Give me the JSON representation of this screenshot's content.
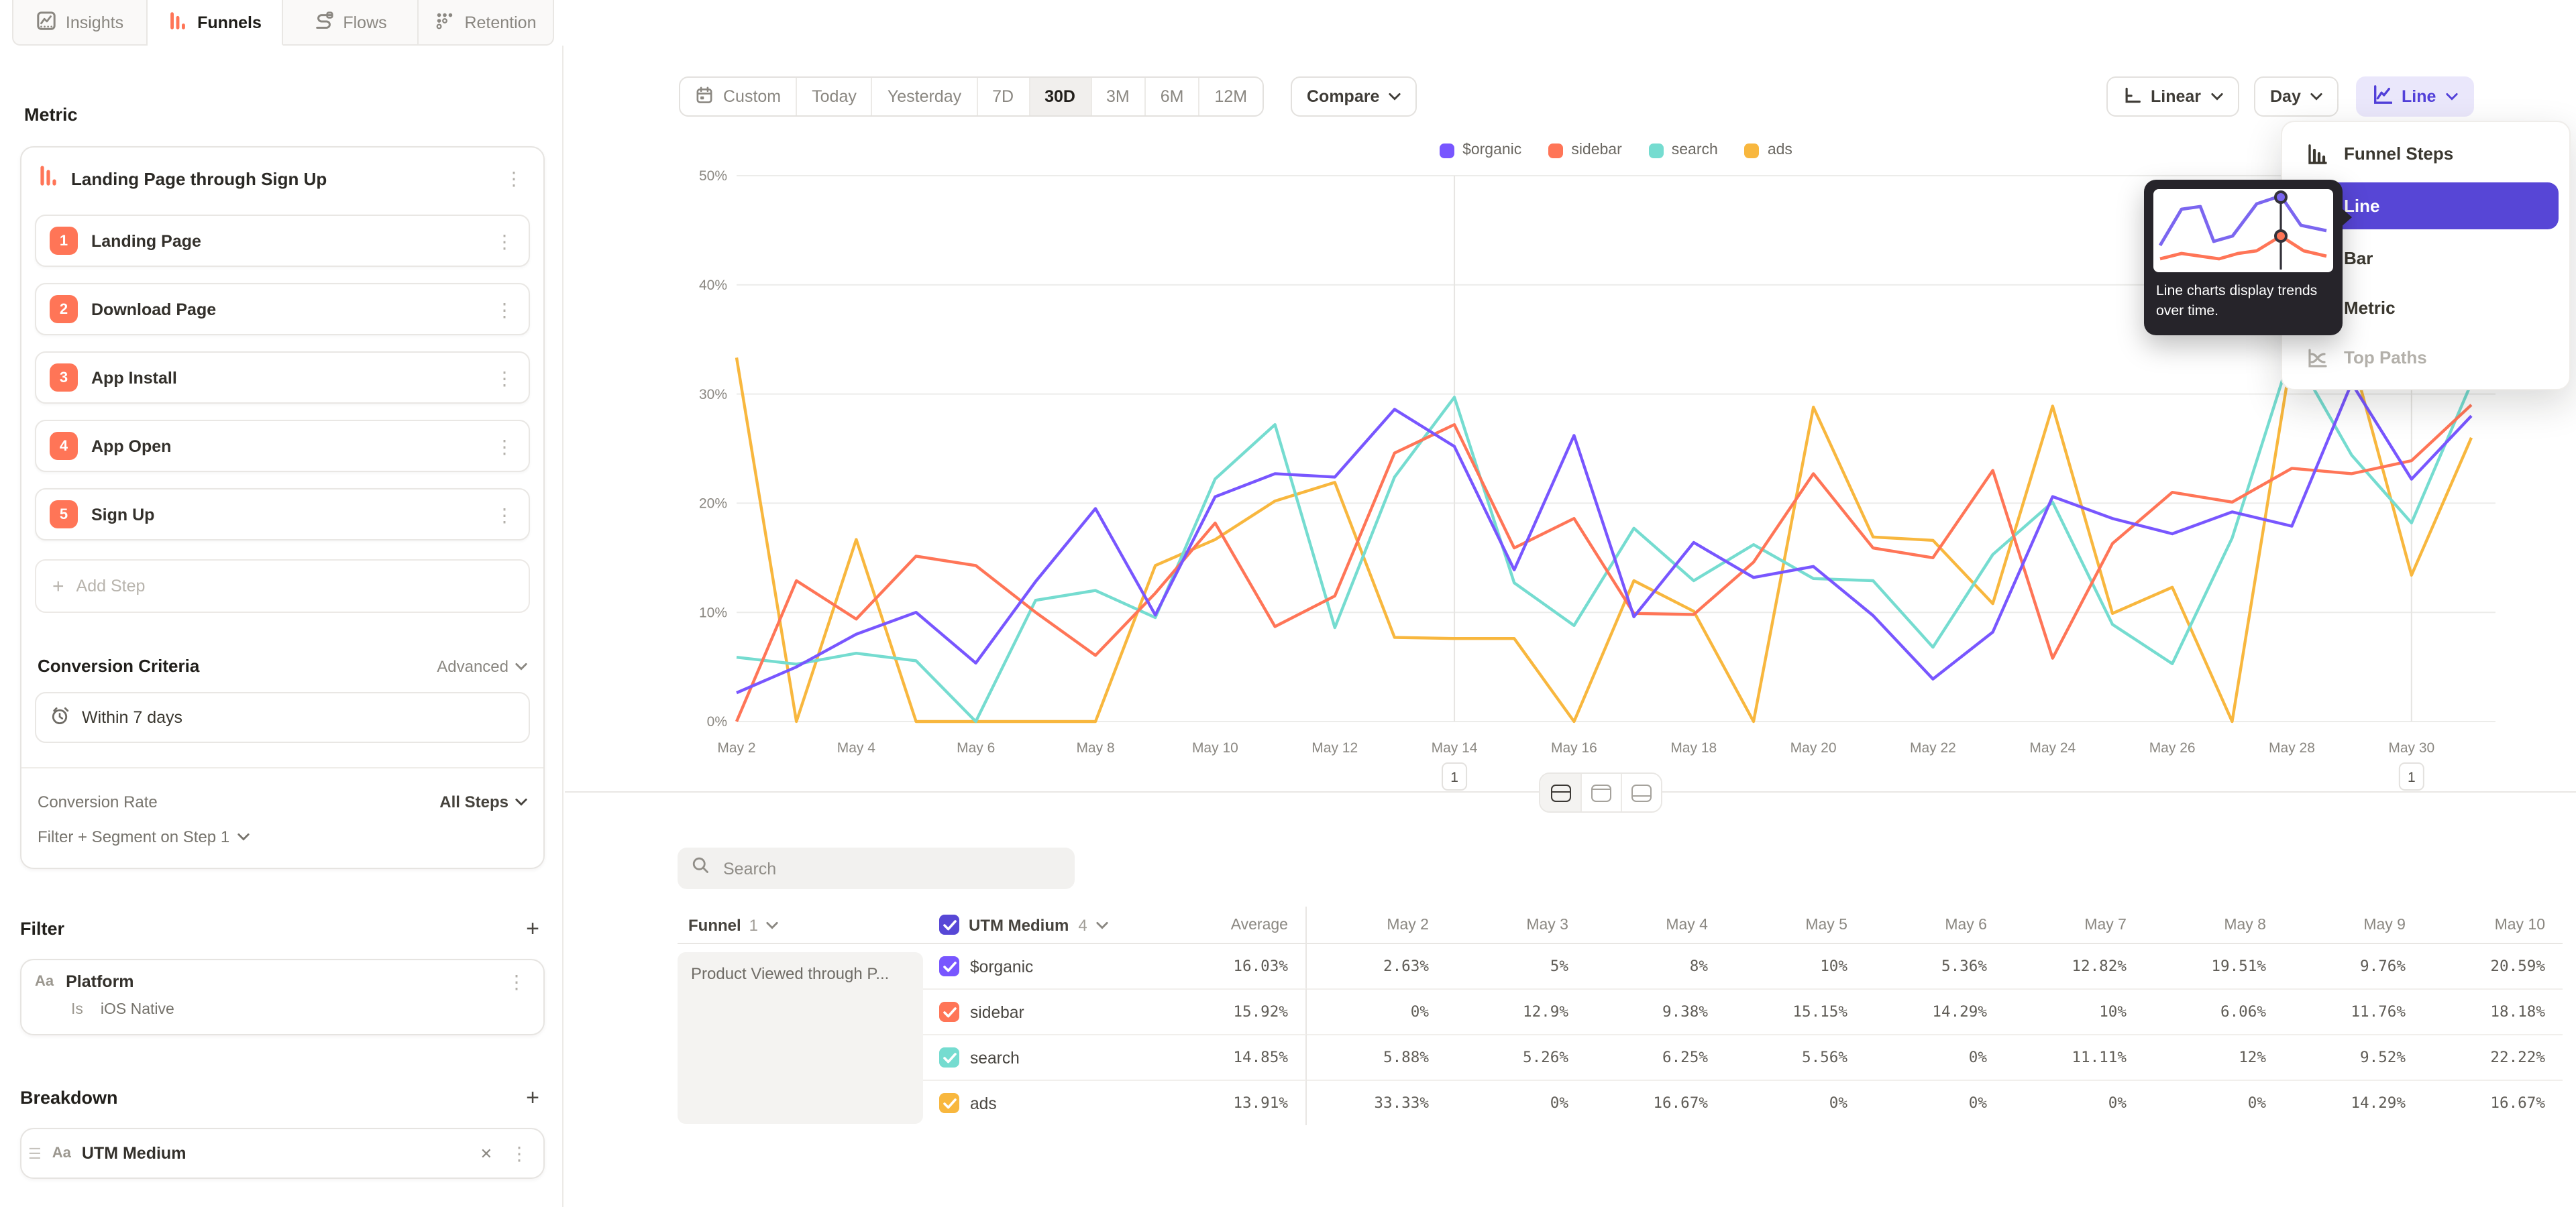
{
  "nav": {
    "tabs": [
      {
        "label": "Insights",
        "icon": "insights-icon",
        "active": false
      },
      {
        "label": "Funnels",
        "icon": "funnels-icon",
        "active": true
      },
      {
        "label": "Flows",
        "icon": "flows-icon",
        "active": false
      },
      {
        "label": "Retention",
        "icon": "retention-icon",
        "active": false
      }
    ]
  },
  "sidebar": {
    "metric_heading": "Metric",
    "metric": {
      "title": "Landing Page through Sign Up",
      "steps": [
        {
          "num": "1",
          "label": "Landing Page"
        },
        {
          "num": "2",
          "label": "Download Page"
        },
        {
          "num": "3",
          "label": "App Install"
        },
        {
          "num": "4",
          "label": "App Open"
        },
        {
          "num": "5",
          "label": "Sign Up"
        }
      ],
      "add_step_label": "Add Step"
    },
    "conversion_criteria": {
      "heading": "Conversion Criteria",
      "advanced_label": "Advanced",
      "window": "Within 7 days",
      "rate_label": "Conversion Rate",
      "rate_value": "All Steps",
      "filter_segment_label": "Filter + Segment on Step 1"
    },
    "filter": {
      "heading": "Filter",
      "type_badge": "Aa",
      "property": "Platform",
      "operator": "Is",
      "value": "iOS Native"
    },
    "breakdown": {
      "heading": "Breakdown",
      "type_badge": "Aa",
      "property": "UTM Medium"
    }
  },
  "toolbar": {
    "date_ranges": [
      "Custom",
      "Today",
      "Yesterday",
      "7D",
      "30D",
      "3M",
      "6M",
      "12M"
    ],
    "active_range": "30D",
    "compare_label": "Compare",
    "x_axis_label": "Linear",
    "granularity_label": "Day",
    "chart_type_label": "Line"
  },
  "chart_menu": {
    "items": [
      {
        "label": "Funnel Steps",
        "icon": "funnel-steps-icon",
        "selected": false,
        "disabled": false
      },
      {
        "label": "Line",
        "icon": "line-icon",
        "selected": true,
        "disabled": false
      },
      {
        "label": "Bar",
        "icon": "bar-icon",
        "selected": false,
        "disabled": false
      },
      {
        "label": "Metric",
        "icon": "metric-icon",
        "selected": false,
        "disabled": false
      },
      {
        "label": "Top Paths",
        "icon": "top-paths-icon",
        "selected": false,
        "disabled": true
      }
    ],
    "tooltip": {
      "text": "Line charts display trends over time."
    }
  },
  "chart_data": {
    "type": "line",
    "x": [
      "May 2",
      "May 3",
      "May 4",
      "May 5",
      "May 6",
      "May 7",
      "May 8",
      "May 9",
      "May 10",
      "May 11",
      "May 12",
      "May 13",
      "May 14",
      "May 15",
      "May 16",
      "May 17",
      "May 18",
      "May 19",
      "May 20",
      "May 21",
      "May 22",
      "May 23",
      "May 24",
      "May 25",
      "May 26",
      "May 27",
      "May 28",
      "May 29",
      "May 30",
      "May 31"
    ],
    "xtick_every": 2,
    "ylim": [
      0,
      50
    ],
    "yticks": [
      0,
      10,
      20,
      30,
      40,
      50
    ],
    "grid": true,
    "legend_position": "top",
    "series": [
      {
        "name": "$organic",
        "color": "#7856ff",
        "values": [
          2.63,
          5,
          8,
          10,
          5.36,
          12.82,
          19.51,
          9.76,
          20.59,
          22.7,
          22.4,
          28.6,
          25.2,
          13.9,
          26.2,
          9.6,
          16.4,
          13.2,
          14.2,
          9.7,
          3.9,
          8.2,
          20.6,
          18.6,
          17.2,
          19.2,
          17.9,
          31,
          22.2,
          28
        ]
      },
      {
        "name": "sidebar",
        "color": "#ff7557",
        "values": [
          0,
          12.9,
          9.38,
          15.15,
          14.29,
          10,
          6.06,
          11.76,
          18.18,
          8.7,
          11.5,
          24.6,
          27.2,
          15.9,
          18.6,
          9.9,
          9.8,
          14.6,
          22.7,
          15.9,
          15,
          23,
          5.8,
          16.3,
          21,
          20.1,
          23.2,
          22.7,
          23.9,
          29
        ]
      },
      {
        "name": "search",
        "color": "#75dcd0",
        "values": [
          5.88,
          5.26,
          6.25,
          5.56,
          0,
          11.11,
          12,
          9.52,
          22.22,
          27.2,
          8.6,
          22.4,
          29.7,
          12.7,
          8.8,
          17.7,
          12.9,
          16.2,
          13.1,
          12.9,
          6.8,
          15.3,
          20.1,
          8.9,
          5.3,
          16.8,
          34,
          24.4,
          18.2,
          31
        ]
      },
      {
        "name": "ads",
        "color": "#f8b73e",
        "values": [
          33.33,
          0,
          16.67,
          0,
          0,
          0,
          0,
          14.29,
          16.67,
          20.2,
          21.9,
          7.7,
          7.6,
          7.6,
          0,
          12.9,
          10.1,
          0,
          28.8,
          16.9,
          16.6,
          10.8,
          28.9,
          9.9,
          12.3,
          0,
          33.7,
          33.6,
          13.4,
          26
        ]
      }
    ],
    "annotations": [
      {
        "x": "May 14",
        "label": "1"
      },
      {
        "x": "May 30",
        "label": "1"
      }
    ]
  },
  "view_toggle": {
    "active": "split-view"
  },
  "table": {
    "search_placeholder": "Search",
    "funnel_label": "Funnel",
    "funnel_count": "1",
    "breakdown_label": "UTM Medium",
    "breakdown_count": "4",
    "average_label": "Average",
    "day_columns": [
      "May 2",
      "May 3",
      "May 4",
      "May 5",
      "May 6",
      "May 7",
      "May 8",
      "May 9",
      "May 10"
    ],
    "group_label": "Product Viewed through P...",
    "rows": [
      {
        "name": "$organic",
        "color": "#7856ff",
        "average": "16.03%",
        "values": [
          "2.63%",
          "5%",
          "8%",
          "10%",
          "5.36%",
          "12.82%",
          "19.51%",
          "9.76%",
          "20.59%"
        ]
      },
      {
        "name": "sidebar",
        "color": "#ff7557",
        "average": "15.92%",
        "values": [
          "0%",
          "12.9%",
          "9.38%",
          "15.15%",
          "14.29%",
          "10%",
          "6.06%",
          "11.76%",
          "18.18%"
        ]
      },
      {
        "name": "search",
        "color": "#75dcd0",
        "average": "14.85%",
        "values": [
          "5.88%",
          "5.26%",
          "6.25%",
          "5.56%",
          "0%",
          "11.11%",
          "12%",
          "9.52%",
          "22.22%"
        ]
      },
      {
        "name": "ads",
        "color": "#f8b73e",
        "average": "13.91%",
        "values": [
          "33.33%",
          "0%",
          "16.67%",
          "0%",
          "0%",
          "0%",
          "0%",
          "14.29%",
          "16.67%"
        ]
      }
    ]
  },
  "colors": {
    "accent": "#5747d6",
    "accent_bg": "#eae7fb",
    "funnel_orange": "#ff7557"
  }
}
